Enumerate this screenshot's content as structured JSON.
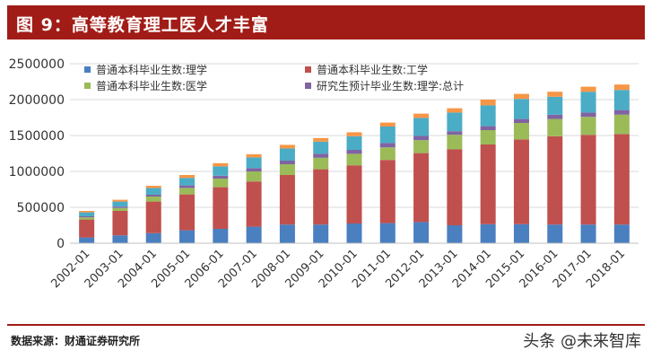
{
  "figure": {
    "title": "图 9：高等教育理工医人才丰富",
    "source": "数据来源：财通证券研究所",
    "watermark": "头条 @未来智库"
  },
  "chart_data": {
    "type": "bar",
    "stacked": true,
    "categories": [
      "2002-01",
      "2003-01",
      "2004-01",
      "2005-01",
      "2006-01",
      "2007-01",
      "2008-01",
      "2009-01",
      "2010-01",
      "2011-01",
      "2012-01",
      "2013-01",
      "2014-01",
      "2015-01",
      "2016-01",
      "2017-01",
      "2018-01"
    ],
    "series": [
      {
        "name": "普通本科毕业生数:理学",
        "color": "#4a7fc0",
        "values": [
          80000,
          110000,
          140000,
          180000,
          200000,
          230000,
          260000,
          260000,
          275000,
          280000,
          295000,
          250000,
          265000,
          265000,
          260000,
          260000,
          260000
        ]
      },
      {
        "name": "普通本科毕业生数:工学",
        "color": "#c0504d",
        "values": [
          250000,
          340000,
          440000,
          500000,
          580000,
          630000,
          690000,
          770000,
          810000,
          880000,
          960000,
          1060000,
          1110000,
          1180000,
          1230000,
          1250000,
          1260000
        ]
      },
      {
        "name": "普通本科毕业生数:医学",
        "color": "#9bbb59",
        "values": [
          30000,
          40000,
          70000,
          90000,
          120000,
          140000,
          150000,
          160000,
          160000,
          175000,
          180000,
          200000,
          200000,
          230000,
          240000,
          250000,
          270000
        ]
      },
      {
        "name": "研究生预计毕业生数:理学:总计",
        "color": "#8064a2",
        "values": [
          15000,
          20000,
          25000,
          35000,
          40000,
          45000,
          50000,
          55000,
          55000,
          60000,
          60000,
          50000,
          55000,
          55000,
          60000,
          60000,
          65000
        ]
      },
      {
        "name": "",
        "color": "#4bacc6",
        "values": [
          55000,
          70000,
          95000,
          105000,
          130000,
          150000,
          170000,
          170000,
          190000,
          230000,
          250000,
          260000,
          290000,
          280000,
          250000,
          290000,
          280000
        ]
      },
      {
        "name": "",
        "color": "#f79646",
        "values": [
          20000,
          25000,
          30000,
          40000,
          45000,
          45000,
          50000,
          50000,
          55000,
          55000,
          60000,
          60000,
          80000,
          70000,
          70000,
          70000,
          75000
        ]
      }
    ],
    "ylim": [
      0,
      2500000
    ],
    "yticks": [
      0,
      500000,
      1000000,
      1500000,
      2000000,
      2500000
    ],
    "ytick_labels": [
      "0",
      "500000",
      "1000000",
      "1500000",
      "2000000",
      "2500000"
    ],
    "grid": true,
    "legend_position": "top"
  }
}
